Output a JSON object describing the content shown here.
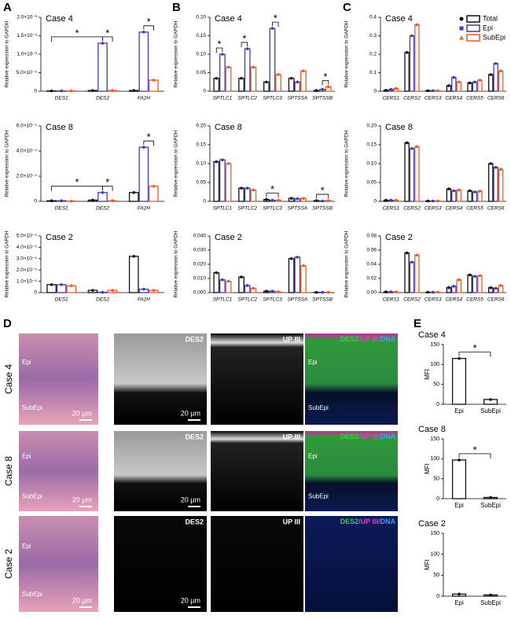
{
  "panel_letters": [
    "A",
    "B",
    "C",
    "D",
    "E"
  ],
  "chart_data": [
    {
      "type": "bar",
      "title": "Case 4",
      "ylabel": "Relative expression to GAPDH",
      "categories": [
        "DES1",
        "DES2",
        "FA2H"
      ],
      "series": [
        {
          "name": "Total",
          "color": "#111111",
          "values": [
            1e-05,
            2e-05,
            2e-05
          ]
        },
        {
          "name": "Epi",
          "color": "#3a3db4",
          "values": [
            1e-05,
            0.0013,
            0.0016
          ]
        },
        {
          "name": "SubEpi",
          "color": "#f0592a",
          "values": [
            1e-05,
            2e-05,
            0.0003
          ]
        }
      ],
      "ylim": [
        0,
        0.002
      ],
      "yticks": [
        {
          "value": 0,
          "label": "0"
        },
        {
          "value": 0.0005,
          "label": "5.0×10⁻⁴"
        },
        {
          "value": 0.001,
          "label": "1.0×10⁻³"
        },
        {
          "value": 0.0015,
          "label": "1.5×10⁻³"
        },
        {
          "value": 0.002,
          "label": "2.0×10⁻³"
        }
      ],
      "annotations": [
        {
          "text": "*",
          "categories": [
            "DES1",
            "DES2"
          ],
          "series": [
            "Total",
            "Epi"
          ]
        },
        {
          "text": "*",
          "categories": [
            "DES2",
            "DES2"
          ],
          "series": [
            "Epi",
            "SubEpi"
          ]
        },
        {
          "text": "*",
          "categories": [
            "FA2H",
            "FA2H"
          ],
          "series": [
            "Epi",
            "SubEpi"
          ]
        }
      ]
    },
    {
      "type": "bar",
      "title": "Case 8",
      "ylabel": "Relative expression to GAPDH",
      "categories": [
        "DES1",
        "DES2",
        "FA2H"
      ],
      "series": [
        {
          "name": "Total",
          "color": "#111111",
          "values": [
            5e-06,
            1e-05,
            7e-05
          ]
        },
        {
          "name": "Epi",
          "color": "#3a3db4",
          "values": [
            5e-06,
            7e-05,
            0.00043
          ]
        },
        {
          "name": "SubEpi",
          "color": "#f0592a",
          "values": [
            2e-06,
            5e-06,
            0.00012
          ]
        }
      ],
      "ylim": [
        0,
        0.0006
      ],
      "yticks": [
        {
          "value": 0,
          "label": "0"
        },
        {
          "value": 0.0002,
          "label": "2.0×10⁻⁴"
        },
        {
          "value": 0.0004,
          "label": "4.0×10⁻⁴"
        },
        {
          "value": 0.0006,
          "label": "6.0×10⁻⁴"
        }
      ],
      "annotations": [
        {
          "text": "*",
          "categories": [
            "DES1",
            "DES2"
          ],
          "series": [
            "Total",
            "Epi"
          ]
        },
        {
          "text": "*",
          "categories": [
            "DES2",
            "DES2"
          ],
          "series": [
            "Epi",
            "SubEpi"
          ]
        },
        {
          "text": "*",
          "categories": [
            "FA2H",
            "FA2H"
          ],
          "series": [
            "Epi",
            "SubEpi"
          ]
        }
      ]
    },
    {
      "type": "bar",
      "title": "Case 2",
      "ylabel": "Relative expression to GAPDH",
      "categories": [
        "DES1",
        "DES2",
        "FA2H"
      ],
      "series": [
        {
          "name": "Total",
          "color": "#111111",
          "values": [
            7e-06,
            2e-06,
            3.2e-05
          ]
        },
        {
          "name": "Epi",
          "color": "#3a3db4",
          "values": [
            7e-06,
            3e-07,
            3e-06
          ]
        },
        {
          "name": "SubEpi",
          "color": "#f0592a",
          "values": [
            6e-06,
            2e-06,
            2e-06
          ]
        }
      ],
      "ylim": [
        0,
        5e-05
      ],
      "yticks": [
        {
          "value": 0,
          "label": "0"
        },
        {
          "value": 1e-05,
          "label": "1.0×10⁻⁵"
        },
        {
          "value": 2e-05,
          "label": "2.0×10⁻⁵"
        },
        {
          "value": 3e-05,
          "label": "3.0×10⁻⁵"
        },
        {
          "value": 4e-05,
          "label": "4.0×10⁻⁵"
        },
        {
          "value": 5e-05,
          "label": "5.0×10⁻⁵"
        }
      ]
    },
    {
      "type": "bar",
      "title": "Case 4",
      "ylabel": "Relative expression to GAPDH",
      "categories": [
        "SPTLC1",
        "SPTLC2",
        "SPTLC3",
        "SPTSSA",
        "SPTSSB"
      ],
      "series": [
        {
          "name": "Total",
          "color": "#111111",
          "values": [
            0.035,
            0.035,
            0.025,
            0.035,
            0.002
          ]
        },
        {
          "name": "Epi",
          "color": "#3a3db4",
          "values": [
            0.1,
            0.115,
            0.17,
            0.025,
            0.005
          ]
        },
        {
          "name": "SubEpi",
          "color": "#f0592a",
          "values": [
            0.065,
            0.065,
            0.045,
            0.055,
            0.012
          ]
        }
      ],
      "ylim": [
        0,
        0.2
      ],
      "yticks": [
        0,
        0.05,
        {
          "value": 0.1,
          "label": "0.10"
        },
        0.15,
        {
          "value": 0.2,
          "label": "0.20"
        }
      ],
      "annotations": [
        {
          "text": "*",
          "categories": [
            "SPTLC1",
            "SPTLC1"
          ],
          "series": [
            "Total",
            "Epi"
          ]
        },
        {
          "text": "*",
          "categories": [
            "SPTLC2",
            "SPTLC2"
          ],
          "series": [
            "Total",
            "Epi"
          ]
        },
        {
          "text": "*",
          "categories": [
            "SPTLC3",
            "SPTLC3"
          ],
          "series": [
            "Epi",
            "SubEpi"
          ]
        },
        {
          "text": "*",
          "categories": [
            "SPTSSB",
            "SPTSSB"
          ],
          "series": [
            "Epi",
            "SubEpi"
          ]
        }
      ]
    },
    {
      "type": "bar",
      "title": "Case 8",
      "ylabel": "Relative expression to GAPDH",
      "categories": [
        "SPTLC1",
        "SPTLC2",
        "SPTLC3",
        "SPTSSA",
        "SPTSSB"
      ],
      "series": [
        {
          "name": "Total",
          "color": "#111111",
          "values": [
            0.105,
            0.035,
            0.005,
            0.008,
            0.002
          ]
        },
        {
          "name": "Epi",
          "color": "#3a3db4",
          "values": [
            0.11,
            0.035,
            0.003,
            0.007,
            0.001
          ]
        },
        {
          "name": "SubEpi",
          "color": "#f0592a",
          "values": [
            0.1,
            0.03,
            0.003,
            0.008,
            0.002
          ]
        }
      ],
      "ylim": [
        0,
        0.2
      ],
      "yticks": [
        0,
        0.05,
        {
          "value": 0.1,
          "label": "0.10"
        },
        0.15,
        {
          "value": 0.2,
          "label": "0.20"
        }
      ],
      "annotations": [
        {
          "text": "*",
          "categories": [
            "SPTLC3",
            "SPTLC3"
          ],
          "series": [
            "Total",
            "SubEpi"
          ]
        },
        {
          "text": "*",
          "categories": [
            "SPTSSB",
            "SPTSSB"
          ],
          "series": [
            "Total",
            "SubEpi"
          ]
        }
      ]
    },
    {
      "type": "bar",
      "title": "Case 2",
      "ylabel": "Relative expression to GAPDH",
      "categories": [
        "SPTLC1",
        "SPTLC2",
        "SPTLC3",
        "SPTSSA",
        "SPTSSB"
      ],
      "series": [
        {
          "name": "Total",
          "color": "#111111",
          "values": [
            0.014,
            0.011,
            0.001,
            0.024,
            0.0002
          ]
        },
        {
          "name": "Epi",
          "color": "#3a3db4",
          "values": [
            0.009,
            0.005,
            0.001,
            0.025,
            0.0002
          ]
        },
        {
          "name": "SubEpi",
          "color": "#f0592a",
          "values": [
            0.008,
            0.003,
            0.0005,
            0.019,
            0.0002
          ]
        }
      ],
      "ylim": [
        0,
        0.04
      ],
      "yticks": [
        {
          "value": 0,
          "label": "0.000"
        },
        {
          "value": 0.01,
          "label": "0.010"
        },
        {
          "value": 0.02,
          "label": "0.020"
        },
        {
          "value": 0.03,
          "label": "0.030"
        },
        {
          "value": 0.04,
          "label": "0.040"
        }
      ]
    },
    {
      "type": "bar",
      "title": "Case 4",
      "ylabel": "Relative expression to GAPDH",
      "legend": "upper right",
      "categories": [
        "CERS1",
        "CERS2",
        "CERS3",
        "CERS4",
        "CERS5",
        "CERS6"
      ],
      "series": [
        {
          "name": "Total",
          "color": "#111111",
          "values": [
            0.005,
            0.21,
            0.003,
            0.03,
            0.045,
            0.09
          ]
        },
        {
          "name": "Epi",
          "color": "#3a3db4",
          "values": [
            0.01,
            0.3,
            0.003,
            0.075,
            0.05,
            0.15
          ]
        },
        {
          "name": "SubEpi",
          "color": "#f0592a",
          "values": [
            0.015,
            0.36,
            0.003,
            0.05,
            0.06,
            0.11
          ]
        }
      ],
      "ylim": [
        0,
        0.4
      ],
      "yticks": [
        0,
        0.1,
        0.2,
        0.3,
        0.4
      ]
    },
    {
      "type": "bar",
      "title": "Case 8",
      "ylabel": "Relative expression to GAPDH",
      "categories": [
        "CERS1",
        "CERS2",
        "CERS3",
        "CERS4",
        "CERS5",
        "CERS6"
      ],
      "series": [
        {
          "name": "Total",
          "color": "#111111",
          "values": [
            0.003,
            0.155,
            0.001,
            0.033,
            0.028,
            0.1
          ]
        },
        {
          "name": "Epi",
          "color": "#3a3db4",
          "values": [
            0.003,
            0.14,
            0.001,
            0.028,
            0.025,
            0.09
          ]
        },
        {
          "name": "SubEpi",
          "color": "#f0592a",
          "values": [
            0.003,
            0.145,
            0.001,
            0.03,
            0.027,
            0.085
          ]
        }
      ],
      "ylim": [
        0,
        0.2
      ],
      "yticks": [
        0,
        0.05,
        {
          "value": 0.1,
          "label": "0.10"
        },
        0.15,
        {
          "value": 0.2,
          "label": "0.20"
        }
      ]
    },
    {
      "type": "bar",
      "title": "Case 2",
      "ylabel": "Relative expression to GAPDH",
      "categories": [
        "CERS1",
        "CERS2",
        "CERS3",
        "CERS4",
        "CERS5",
        "CERS6"
      ],
      "series": [
        {
          "name": "Total",
          "color": "#111111",
          "values": [
            0.001,
            0.056,
            0.0005,
            0.007,
            0.025,
            0.007
          ]
        },
        {
          "name": "Epi",
          "color": "#3a3db4",
          "values": [
            0.001,
            0.043,
            0.0005,
            0.009,
            0.023,
            0.006
          ]
        },
        {
          "name": "SubEpi",
          "color": "#f0592a",
          "values": [
            0.001,
            0.053,
            0.0005,
            0.018,
            0.024,
            0.01
          ]
        }
      ],
      "ylim": [
        0,
        0.08
      ],
      "yticks": [
        {
          "value": 0,
          "label": "0.00"
        },
        0.02,
        0.04,
        0.06,
        0.08
      ]
    },
    {
      "type": "bar",
      "title": "Case 4",
      "ylabel": "MFI",
      "categories": [
        "Epi",
        "SubEpi"
      ],
      "values": [
        115,
        12
      ],
      "color": "#111111",
      "ylim": [
        0,
        150
      ],
      "yticks": [
        0,
        50,
        100,
        150
      ],
      "annotations": [
        {
          "text": "*",
          "categories": [
            "Epi",
            "SubEpi"
          ]
        }
      ]
    },
    {
      "type": "bar",
      "title": "Case 8",
      "ylabel": "MFI",
      "categories": [
        "Epi",
        "SubEpi"
      ],
      "values": [
        97,
        3
      ],
      "color": "#111111",
      "ylim": [
        0,
        150
      ],
      "yticks": [
        0,
        50,
        100,
        150
      ],
      "annotations": [
        {
          "text": "*",
          "categories": [
            "Epi",
            "SubEpi"
          ]
        }
      ]
    },
    {
      "type": "bar",
      "title": "Case 2",
      "ylabel": "MFI",
      "categories": [
        "Epi",
        "SubEpi"
      ],
      "values": [
        5,
        3
      ],
      "color": "#111111",
      "ylim": [
        0,
        150
      ],
      "yticks": [
        0,
        50,
        100,
        150
      ]
    }
  ],
  "panel_d": {
    "rows": [
      "Case 4",
      "Case 8",
      "Case 2"
    ],
    "channels": [
      "DES2",
      "UP III"
    ],
    "merge_label": [
      "DES2",
      "/UP III/",
      "DNA"
    ],
    "regions": [
      "Epi",
      "SubEpi"
    ],
    "scale": "20 µm"
  }
}
